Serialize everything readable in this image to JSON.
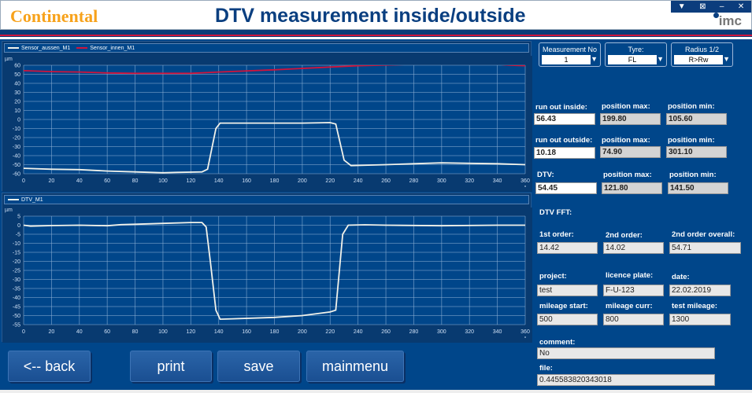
{
  "header": {
    "logo": "Continental",
    "title": "DTV measurement inside/outside",
    "imc_logo": "imc",
    "window_buttons": [
      "▼",
      "⊠",
      "–",
      "✕"
    ]
  },
  "colors": {
    "background": "#00468a",
    "title": "#0a3f80",
    "series_white": "#f2f2ea",
    "series_red": "#d0143c"
  },
  "selectors": [
    {
      "label": "Measurement No",
      "value": "1"
    },
    {
      "label": "Tyre:",
      "value": "FL"
    },
    {
      "label": "Radius 1/2",
      "value": "R>Rw"
    }
  ],
  "results": {
    "run_out_inside": {
      "label": "run out inside:",
      "value": "56.43",
      "pos_max_label": "position max:",
      "pos_max": "199.80",
      "pos_min_label": "position min:",
      "pos_min": "105.60"
    },
    "run_out_outside": {
      "label": "run out outside:",
      "value": "10.18",
      "pos_max_label": "position max:",
      "pos_max": "74.90",
      "pos_min_label": "position min:",
      "pos_min": "301.10"
    },
    "dtv": {
      "label": "DTV:",
      "value": "54.45",
      "pos_max_label": "position max:",
      "pos_max": "121.80",
      "pos_min_label": "position min:",
      "pos_min": "141.50"
    }
  },
  "fft": {
    "title": "DTV FFT:",
    "first_label": "1st order:",
    "first": "14.42",
    "second_label": "2nd order:",
    "second": "14.02",
    "overall_label": "2nd order overall:",
    "overall": "54.71"
  },
  "info": {
    "project_label": "project:",
    "project": "test",
    "plate_label": "licence plate:",
    "plate": "F-U-123",
    "date_label": "date:",
    "date": "22.02.2019",
    "mstart_label": "mileage start:",
    "mstart": "500",
    "mcurr_label": "mileage curr:",
    "mcurr": "800",
    "mtest_label": "test mileage:",
    "mtest": "1300",
    "comment_label": "comment:",
    "comment": "No",
    "file_label": "file:",
    "file": "0.445583820343018"
  },
  "buttons": {
    "back": "<-- back",
    "print": "print",
    "save": "save",
    "mainmenu": "mainmenu"
  },
  "chart_data": [
    {
      "type": "line",
      "ylabel": "µm",
      "xunit": "°",
      "xlim": [
        0,
        360
      ],
      "ylim": [
        -60,
        60
      ],
      "yticks": [
        60,
        50,
        40,
        30,
        20,
        10,
        0,
        -10,
        -20,
        -30,
        -40,
        -50,
        -60
      ],
      "xticks": [
        0,
        20,
        40,
        60,
        80,
        100,
        120,
        140,
        160,
        180,
        200,
        220,
        240,
        260,
        280,
        300,
        320,
        340,
        360
      ],
      "grid": true,
      "legend": "top-left",
      "series": [
        {
          "name": "Sensor_aussen_M1",
          "color": "#f2f2ea",
          "x": [
            0,
            20,
            40,
            60,
            80,
            100,
            110,
            128,
            132,
            138,
            141,
            160,
            200,
            220,
            224,
            230,
            235,
            260,
            280,
            300,
            320,
            340,
            360
          ],
          "y": [
            -54,
            -55,
            -55.5,
            -57,
            -58,
            -59,
            -58.5,
            -58,
            -55,
            -10,
            -4,
            -4,
            -4,
            -3.5,
            -5,
            -45,
            -51,
            -50,
            -49,
            -48,
            -48.5,
            -49,
            -50
          ]
        },
        {
          "name": "Sensor_innen_M1",
          "color": "#d0143c",
          "x": [
            0,
            20,
            40,
            60,
            80,
            120,
            140,
            180,
            220,
            240,
            260,
            280,
            300,
            340,
            350,
            360
          ],
          "y": [
            54,
            53,
            52.5,
            51.5,
            51,
            51,
            52.5,
            55,
            58,
            59.5,
            60.3,
            61,
            61,
            61,
            60,
            59.5
          ]
        }
      ]
    },
    {
      "type": "line",
      "ylabel": "µm",
      "xunit": "°",
      "xlim": [
        0,
        360
      ],
      "ylim": [
        -55,
        5
      ],
      "yticks": [
        5,
        0,
        -5,
        -10,
        -15,
        -20,
        -25,
        -30,
        -35,
        -40,
        -45,
        -50,
        -55
      ],
      "xticks": [
        0,
        20,
        40,
        60,
        80,
        100,
        120,
        140,
        160,
        180,
        200,
        220,
        240,
        260,
        280,
        300,
        320,
        340,
        360
      ],
      "grid": true,
      "legend": "top-left",
      "series": [
        {
          "name": "DTV_M1",
          "color": "#f2f2ea",
          "x": [
            0,
            5,
            20,
            40,
            60,
            70,
            80,
            100,
            120,
            128,
            131,
            134,
            138,
            141,
            150,
            180,
            200,
            220,
            224,
            229,
            233,
            245,
            260,
            300,
            340,
            360
          ],
          "y": [
            0,
            -0.5,
            -0.2,
            0,
            -0.3,
            0.3,
            0.5,
            1,
            1.5,
            1.5,
            -1,
            -20,
            -47,
            -52,
            -51.8,
            -51,
            -50,
            -48,
            -47,
            -5,
            0,
            0.2,
            0,
            -0.3,
            0,
            0
          ]
        }
      ]
    }
  ]
}
